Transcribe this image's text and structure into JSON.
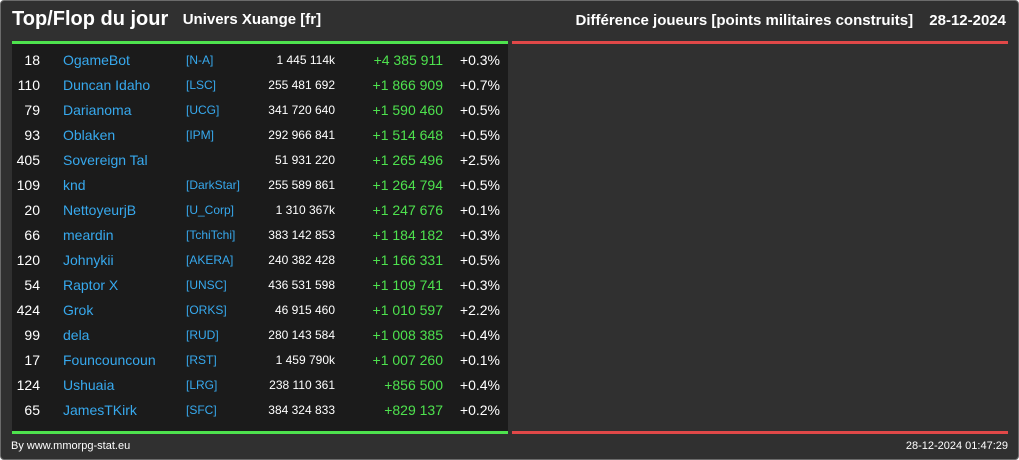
{
  "header": {
    "title": "Top/Flop du jour",
    "universe": "Univers Xuange [fr]",
    "metric": "Différence joueurs [points militaires construits]",
    "date": "28-12-2024"
  },
  "colors": {
    "top_accent": "#4ee24e",
    "flop_accent": "#e04848",
    "name_link": "#37a9ee",
    "panel_bg": "#1b1b1b",
    "frame_bg": "#303030"
  },
  "top_rows": [
    {
      "rank": "18",
      "name": "OgameBot",
      "alliance": "[N-A]",
      "points": "1 445 114k",
      "diff": "+4 385 911",
      "pct": "+0.3%"
    },
    {
      "rank": "110",
      "name": "Duncan Idaho",
      "alliance": "[LSC]",
      "points": "255 481 692",
      "diff": "+1 866 909",
      "pct": "+0.7%"
    },
    {
      "rank": "79",
      "name": "Darianoma",
      "alliance": "[UCG]",
      "points": "341 720 640",
      "diff": "+1 590 460",
      "pct": "+0.5%"
    },
    {
      "rank": "93",
      "name": "Oblaken",
      "alliance": "[IPM]",
      "points": "292 966 841",
      "diff": "+1 514 648",
      "pct": "+0.5%"
    },
    {
      "rank": "405",
      "name": "Sovereign Tal",
      "alliance": "",
      "points": "51 931 220",
      "diff": "+1 265 496",
      "pct": "+2.5%"
    },
    {
      "rank": "109",
      "name": "knd",
      "alliance": "[DarkStar]",
      "points": "255 589 861",
      "diff": "+1 264 794",
      "pct": "+0.5%"
    },
    {
      "rank": "20",
      "name": "NettoyeurjB",
      "alliance": "[U_Corp]",
      "points": "1 310 367k",
      "diff": "+1 247 676",
      "pct": "+0.1%"
    },
    {
      "rank": "66",
      "name": "meardin",
      "alliance": "[TchiTchi]",
      "points": "383 142 853",
      "diff": "+1 184 182",
      "pct": "+0.3%"
    },
    {
      "rank": "120",
      "name": "Johnykii",
      "alliance": "[AKERA]",
      "points": "240 382 428",
      "diff": "+1 166 331",
      "pct": "+0.5%"
    },
    {
      "rank": "54",
      "name": "Raptor X",
      "alliance": "[UNSC]",
      "points": "436 531 598",
      "diff": "+1 109 741",
      "pct": "+0.3%"
    },
    {
      "rank": "424",
      "name": "Grok",
      "alliance": "[ORKS]",
      "points": "46 915 460",
      "diff": "+1 010 597",
      "pct": "+2.2%"
    },
    {
      "rank": "99",
      "name": "dela",
      "alliance": "[RUD]",
      "points": "280 143 584",
      "diff": "+1 008 385",
      "pct": "+0.4%"
    },
    {
      "rank": "17",
      "name": "Founcouncoun",
      "alliance": "[RST]",
      "points": "1 459 790k",
      "diff": "+1 007 260",
      "pct": "+0.1%"
    },
    {
      "rank": "124",
      "name": "Ushuaia",
      "alliance": "[LRG]",
      "points": "238 110 361",
      "diff": "+856 500",
      "pct": "+0.4%"
    },
    {
      "rank": "65",
      "name": "JamesTKirk",
      "alliance": "[SFC]",
      "points": "384 324 833",
      "diff": "+829 137",
      "pct": "+0.2%"
    }
  ],
  "footer": {
    "credit": "By www.mmorpg-stat.eu",
    "timestamp": "28-12-2024 01:47:29"
  }
}
